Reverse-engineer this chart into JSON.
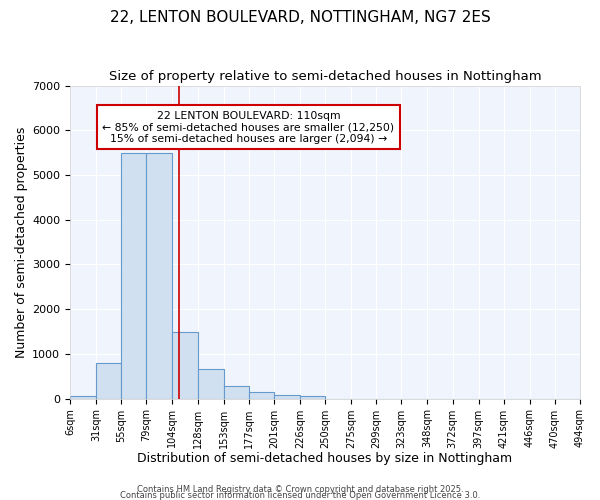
{
  "title_line1": "22, LENTON BOULEVARD, NOTTINGHAM, NG7 2ES",
  "title_line2": "Size of property relative to semi-detached houses in Nottingham",
  "xlabel": "Distribution of semi-detached houses by size in Nottingham",
  "ylabel": "Number of semi-detached properties",
  "bin_labels": [
    "6sqm",
    "31sqm",
    "55sqm",
    "79sqm",
    "104sqm",
    "128sqm",
    "153sqm",
    "177sqm",
    "201sqm",
    "226sqm",
    "250sqm",
    "275sqm",
    "299sqm",
    "323sqm",
    "348sqm",
    "372sqm",
    "397sqm",
    "421sqm",
    "446sqm",
    "470sqm",
    "494sqm"
  ],
  "bin_edges": [
    6,
    31,
    55,
    79,
    104,
    128,
    153,
    177,
    201,
    226,
    250,
    275,
    299,
    323,
    348,
    372,
    397,
    421,
    446,
    470,
    494
  ],
  "bar_heights": [
    50,
    800,
    5500,
    5500,
    1500,
    660,
    280,
    150,
    75,
    55,
    0,
    0,
    0,
    0,
    0,
    0,
    0,
    0,
    0,
    0
  ],
  "bar_color": "#d0e0f0",
  "bar_edge_color": "#6699cc",
  "property_value": 110,
  "red_line_color": "#cc0000",
  "annotation_title": "22 LENTON BOULEVARD: 110sqm",
  "annotation_line2": "← 85% of semi-detached houses are smaller (12,250)",
  "annotation_line3": "15% of semi-detached houses are larger (2,094) →",
  "annotation_box_color": "#ffffff",
  "annotation_box_edge": "#cc0000",
  "ylim": [
    0,
    7000
  ],
  "yticks": [
    0,
    1000,
    2000,
    3000,
    4000,
    5000,
    6000,
    7000
  ],
  "background_color": "#ffffff",
  "plot_bg_color": "#f0f4fc",
  "footer_line1": "Contains HM Land Registry data © Crown copyright and database right 2025.",
  "footer_line2": "Contains public sector information licensed under the Open Government Licence 3.0.",
  "title_fontsize": 11,
  "subtitle_fontsize": 9.5,
  "xlabel_fontsize": 9,
  "ylabel_fontsize": 9
}
